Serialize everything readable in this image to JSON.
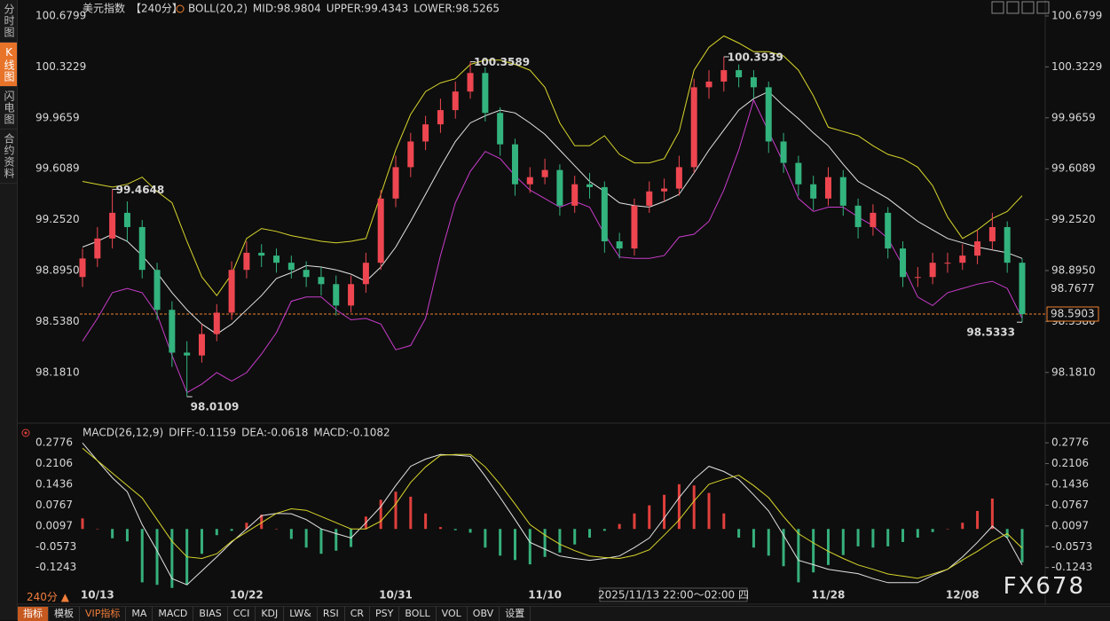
{
  "sidebar": [
    "分时图",
    "K线图",
    "闪电图",
    "合约资料"
  ],
  "active_tab": 1,
  "toolbar": [
    "指标",
    "模板",
    "VIP指标",
    "MA",
    "MACD",
    "BIAS",
    "CCI",
    "KDJ",
    "LW&",
    "RSI",
    "CR",
    "PSY",
    "BOLL",
    "VOL",
    "OBV",
    "设置"
  ],
  "interval_label": "240分 ▲",
  "watermark": "FX678",
  "chart_data": [
    {
      "type": "candlestick",
      "title": "美元指数",
      "subtitle": "【240分】",
      "indicator": "BOLL(20,2)",
      "categories": [
        null,
        "10/13",
        null,
        null,
        null,
        null,
        null,
        null,
        null,
        null,
        null,
        "10/22",
        null,
        null,
        null,
        null,
        null,
        null,
        null,
        null,
        null,
        "10/31",
        null,
        null,
        null,
        null,
        null,
        null,
        null,
        null,
        null,
        "11/10",
        null,
        null,
        null,
        null,
        null,
        null,
        null,
        null,
        null,
        null,
        null,
        null,
        null,
        null,
        null,
        null,
        null,
        null,
        "11/28",
        null,
        null,
        null,
        null,
        null,
        null,
        null,
        null,
        "12/08",
        null,
        null,
        null,
        null
      ],
      "open": [
        98.85,
        98.98,
        99.12,
        99.3,
        99.2,
        98.9,
        98.62,
        98.32,
        98.3,
        98.45,
        98.6,
        98.9,
        99.02,
        99.0,
        98.95,
        98.9,
        98.85,
        98.8,
        98.65,
        98.8,
        98.95,
        99.4,
        99.62,
        99.8,
        99.92,
        100.02,
        100.15,
        100.28,
        100.0,
        99.78,
        99.5,
        99.55,
        99.6,
        99.35,
        99.5,
        99.48,
        99.1,
        99.05,
        99.35,
        99.45,
        99.47,
        99.62,
        100.18,
        100.22,
        100.3,
        100.25,
        100.18,
        99.8,
        99.65,
        99.5,
        99.4,
        99.55,
        99.35,
        99.2,
        99.3,
        99.05,
        98.85,
        98.85,
        98.95,
        98.95,
        99.0,
        99.1,
        99.2,
        98.95
      ],
      "high": [
        99.05,
        99.2,
        99.4648,
        99.38,
        99.25,
        98.95,
        98.68,
        98.4,
        98.52,
        98.66,
        98.96,
        99.1,
        99.08,
        99.05,
        99.0,
        98.96,
        98.92,
        98.86,
        98.86,
        99.02,
        99.46,
        99.7,
        99.86,
        99.98,
        100.1,
        100.22,
        100.3589,
        100.32,
        100.04,
        99.82,
        99.62,
        99.68,
        99.64,
        99.56,
        99.58,
        99.52,
        99.16,
        99.4,
        99.52,
        99.54,
        99.7,
        100.24,
        100.3,
        100.3939,
        100.34,
        100.3,
        100.22,
        99.86,
        99.7,
        99.56,
        99.62,
        99.6,
        99.4,
        99.36,
        99.34,
        99.1,
        98.92,
        99.02,
        99.02,
        99.08,
        99.18,
        99.3,
        99.24,
        98.98
      ],
      "low": [
        98.78,
        98.92,
        99.05,
        99.1,
        98.84,
        98.55,
        98.22,
        98.0109,
        98.25,
        98.4,
        98.55,
        98.84,
        98.92,
        98.88,
        98.84,
        98.78,
        98.72,
        98.58,
        98.6,
        98.74,
        98.9,
        99.34,
        99.55,
        99.74,
        99.86,
        99.96,
        100.1,
        99.94,
        99.7,
        99.42,
        99.44,
        99.5,
        99.28,
        99.3,
        99.4,
        99.02,
        98.98,
        99.0,
        99.3,
        99.38,
        99.42,
        99.58,
        100.1,
        100.15,
        100.18,
        100.1,
        99.72,
        99.58,
        99.42,
        99.32,
        99.35,
        99.28,
        99.12,
        99.14,
        98.98,
        98.78,
        98.78,
        98.8,
        98.88,
        98.9,
        98.94,
        99.04,
        98.88,
        98.5333
      ],
      "close": [
        98.98,
        99.12,
        99.3,
        99.2,
        98.9,
        98.62,
        98.32,
        98.3,
        98.45,
        98.6,
        98.9,
        99.02,
        99.0,
        98.95,
        98.9,
        98.85,
        98.8,
        98.65,
        98.8,
        98.95,
        99.4,
        99.62,
        99.8,
        99.92,
        100.02,
        100.15,
        100.28,
        100.0,
        99.78,
        99.5,
        99.55,
        99.6,
        99.35,
        99.5,
        99.48,
        99.1,
        99.05,
        99.35,
        99.45,
        99.47,
        99.62,
        100.18,
        100.22,
        100.3,
        100.25,
        100.18,
        99.8,
        99.65,
        99.5,
        99.4,
        99.55,
        99.35,
        99.2,
        99.3,
        99.05,
        98.85,
        98.85,
        98.95,
        98.95,
        99.0,
        99.1,
        99.2,
        98.95,
        98.59
      ],
      "up_color": "#ee4650",
      "down_color": "#33b37e",
      "series": [
        {
          "name": "MID:98.9804",
          "color": "#e4e4e4",
          "values": [
            99.06,
            99.1,
            99.15,
            99.1,
            99.0,
            98.88,
            98.74,
            98.62,
            98.52,
            98.45,
            98.52,
            98.62,
            98.72,
            98.84,
            98.88,
            98.93,
            98.92,
            98.9,
            98.87,
            98.82,
            98.92,
            99.06,
            99.24,
            99.43,
            99.62,
            99.8,
            99.93,
            99.98,
            100.02,
            100.0,
            99.93,
            99.85,
            99.74,
            99.63,
            99.52,
            99.45,
            99.37,
            99.35,
            99.34,
            99.38,
            99.43,
            99.58,
            99.74,
            99.88,
            100.02,
            100.1,
            100.15,
            100.05,
            99.96,
            99.86,
            99.77,
            99.64,
            99.52,
            99.46,
            99.4,
            99.32,
            99.24,
            99.18,
            99.12,
            99.09,
            99.06,
            99.04,
            99.02,
            98.98
          ]
        },
        {
          "name": "UPPER:99.4343",
          "color": "#d9d62c",
          "values": [
            99.52,
            99.5,
            99.48,
            99.5,
            99.55,
            99.45,
            99.37,
            99.1,
            98.85,
            98.72,
            98.87,
            99.12,
            99.19,
            99.17,
            99.14,
            99.12,
            99.1,
            99.09,
            99.1,
            99.12,
            99.43,
            99.74,
            99.99,
            100.15,
            100.21,
            100.24,
            100.34,
            100.37,
            100.37,
            100.34,
            100.3,
            100.18,
            99.93,
            99.77,
            99.77,
            99.84,
            99.71,
            99.65,
            99.65,
            99.68,
            99.87,
            100.3,
            100.46,
            100.54,
            100.49,
            100.43,
            100.43,
            100.4,
            100.3,
            100.12,
            99.9,
            99.87,
            99.84,
            99.77,
            99.71,
            99.68,
            99.62,
            99.49,
            99.27,
            99.12,
            99.18,
            99.26,
            99.31,
            99.42
          ]
        },
        {
          "name": "LOWER:98.5265",
          "color": "#c93ccb",
          "values": [
            98.4,
            98.56,
            98.74,
            98.77,
            98.74,
            98.59,
            98.3,
            98.04,
            98.1,
            98.18,
            98.12,
            98.18,
            98.31,
            98.46,
            98.68,
            98.71,
            98.71,
            98.62,
            98.55,
            98.56,
            98.52,
            98.34,
            98.37,
            98.56,
            99.0,
            99.37,
            99.59,
            99.73,
            99.68,
            99.56,
            99.46,
            99.4,
            99.34,
            99.38,
            99.34,
            99.15,
            98.99,
            98.98,
            98.98,
            99.0,
            99.13,
            99.15,
            99.24,
            99.46,
            99.74,
            100.09,
            99.87,
            99.65,
            99.4,
            99.31,
            99.34,
            99.34,
            99.27,
            99.21,
            99.12,
            98.93,
            98.71,
            98.65,
            98.74,
            98.77,
            98.8,
            98.82,
            98.77,
            98.56
          ]
        }
      ],
      "ylim": [
        97.869,
        100.742
      ],
      "yticks": [
        100.6799,
        100.3229,
        99.9659,
        99.6089,
        {
          "value": 99.252,
          "label": "99.2520"
        },
        {
          "value": 98.895,
          "label": "98.8950"
        },
        {
          "value": 98.538,
          "label": "98.5380"
        },
        {
          "value": 98.181,
          "label": "98.1810"
        }
      ],
      "high_labels": [
        99.4648,
        100.3589,
        100.3939
      ],
      "low_labels": [
        98.0109,
        98.5333
      ],
      "high_label_color": "#ee4650",
      "low_label_color": "#4fc28e",
      "last_price": 98.5903,
      "ref_price": 98.7677,
      "price_color": "#f0802e",
      "crosshair_time": "2025/11/13 22:00～02:00 四"
    },
    {
      "type": "macd",
      "indicator": "MACD(26,12,9)",
      "series": [
        {
          "name": "DIFF:-0.1159",
          "color": "#e4e4e4",
          "values": [
            0.277,
            0.22,
            0.165,
            0.12,
            0.014,
            -0.07,
            -0.16,
            -0.18,
            -0.135,
            -0.09,
            -0.043,
            0.0,
            0.043,
            0.05,
            0.049,
            0.03,
            0.0,
            -0.015,
            -0.029,
            0.02,
            0.072,
            0.14,
            0.202,
            0.225,
            0.24,
            0.238,
            0.234,
            0.17,
            0.101,
            0.03,
            -0.043,
            -0.065,
            -0.087,
            -0.095,
            -0.101,
            -0.095,
            -0.087,
            -0.06,
            -0.029,
            0.035,
            0.101,
            0.16,
            0.202,
            0.185,
            0.159,
            0.11,
            0.058,
            -0.02,
            -0.101,
            -0.115,
            -0.13,
            -0.137,
            -0.144,
            -0.16,
            -0.173,
            -0.173,
            -0.173,
            -0.15,
            -0.13,
            -0.09,
            -0.043,
            0.009,
            -0.029,
            -0.116
          ]
        },
        {
          "name": "DEA:-0.0618",
          "color": "#d9d62c",
          "values": [
            0.26,
            0.22,
            0.18,
            0.14,
            0.1,
            0.03,
            -0.04,
            -0.09,
            -0.095,
            -0.08,
            -0.04,
            -0.01,
            0.02,
            0.05,
            0.065,
            0.06,
            0.04,
            0.02,
            0.0,
            0.0,
            0.025,
            0.08,
            0.15,
            0.2,
            0.237,
            0.24,
            0.24,
            0.2,
            0.144,
            0.08,
            0.014,
            -0.02,
            -0.049,
            -0.07,
            -0.087,
            -0.092,
            -0.095,
            -0.085,
            -0.067,
            -0.02,
            0.029,
            0.09,
            0.144,
            0.16,
            0.173,
            0.14,
            0.101,
            0.04,
            -0.015,
            -0.045,
            -0.072,
            -0.095,
            -0.116,
            -0.13,
            -0.145,
            -0.152,
            -0.159,
            -0.145,
            -0.13,
            -0.1,
            -0.072,
            -0.04,
            -0.015,
            -0.062
          ]
        },
        {
          "name": "MACD:-0.1082",
          "color": "#d03cd0",
          "kind": "bar",
          "pos_color": "#e0403c",
          "neg_color": "#36b07c",
          "values": [
            0.034,
            0.0,
            -0.03,
            -0.04,
            -0.172,
            -0.18,
            -0.19,
            -0.18,
            -0.08,
            -0.02,
            -0.006,
            0.02,
            0.046,
            0.0,
            -0.032,
            -0.06,
            -0.08,
            -0.07,
            -0.058,
            0.04,
            0.094,
            0.12,
            0.104,
            0.05,
            0.006,
            -0.004,
            -0.012,
            -0.06,
            -0.086,
            -0.1,
            -0.114,
            -0.09,
            -0.076,
            -0.05,
            -0.028,
            -0.006,
            0.016,
            0.05,
            0.076,
            0.11,
            0.144,
            0.14,
            0.116,
            0.05,
            -0.028,
            -0.06,
            -0.086,
            -0.12,
            -0.172,
            -0.14,
            -0.116,
            -0.084,
            -0.056,
            -0.06,
            -0.056,
            -0.042,
            -0.028,
            -0.01,
            0.0,
            0.02,
            0.058,
            0.098,
            -0.028,
            -0.108
          ]
        }
      ],
      "ylim": [
        -0.1879,
        0.3036
      ],
      "yticks": [
        0.2776,
        0.2106,
        0.1436,
        0.0767,
        0.0097,
        -0.0573,
        -0.1243
      ]
    }
  ]
}
